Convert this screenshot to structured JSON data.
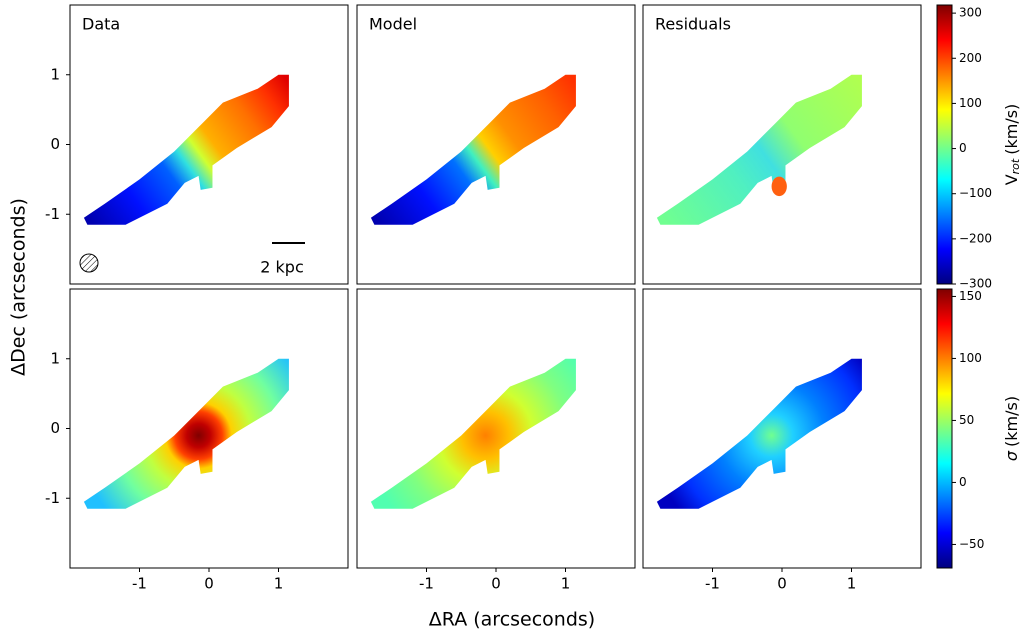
{
  "chart_data": {
    "type": "heatmap",
    "colormap": "jet",
    "panel_titles": [
      "Data",
      "Model",
      "Residuals"
    ],
    "xlabel": "ΔRA (arcseconds)",
    "ylabel": "ΔDec (arcseconds)",
    "xlim": [
      -2,
      2
    ],
    "ylim": [
      -2,
      2
    ],
    "xticks": [
      -1,
      0,
      1
    ],
    "yticks": [
      -1,
      0,
      1
    ],
    "scalebar_label": "2 kpc",
    "colorbars": [
      {
        "label": "V",
        "label_subscript": "rot",
        "label_unit": "(km/s)",
        "lim": [
          -300,
          318
        ],
        "ticks": [
          300,
          200,
          100,
          0,
          {
            "value": -100,
            "label": "−100"
          },
          {
            "value": -200,
            "label": "−200"
          },
          {
            "value": -300,
            "label": "−300"
          }
        ]
      },
      {
        "label": "σ",
        "label_unit": "(km/s)",
        "lim": [
          -69,
          156
        ],
        "ticks": [
          150,
          100,
          50,
          0,
          {
            "value": -50,
            "label": "−50"
          }
        ]
      }
    ]
  }
}
